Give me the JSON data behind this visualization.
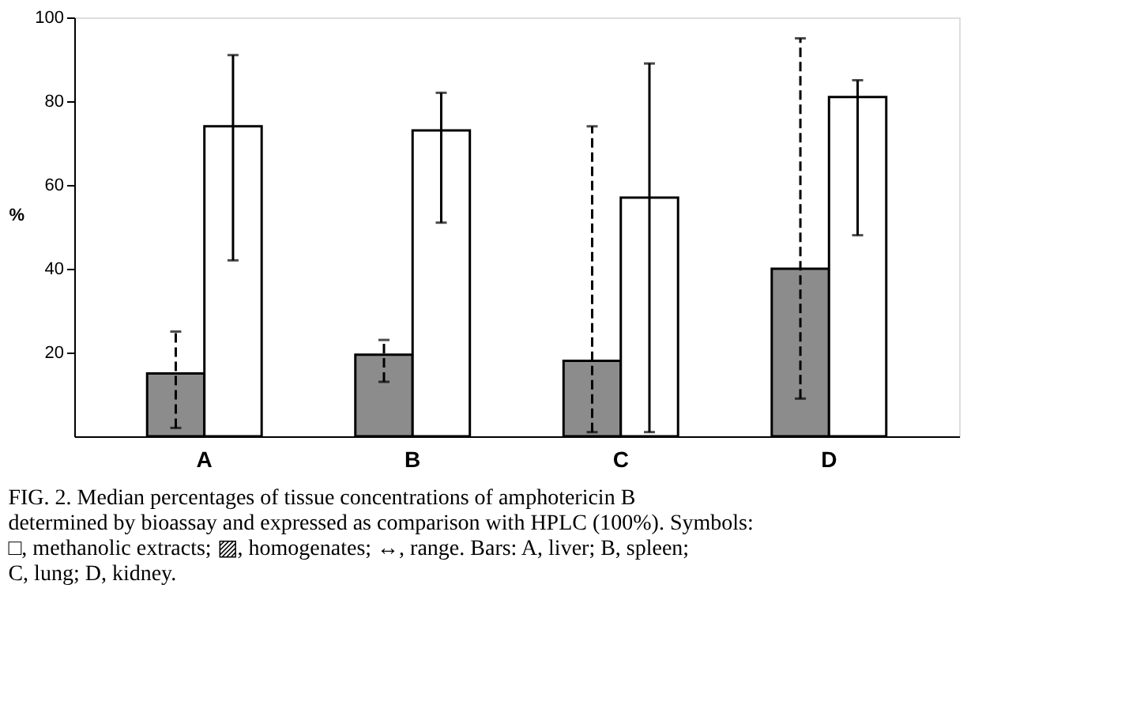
{
  "chart_data": {
    "type": "bar",
    "categories": [
      "A",
      "B",
      "C",
      "D"
    ],
    "ylabel": "%",
    "ylim": [
      0,
      100
    ],
    "yticks": [
      20,
      40,
      60,
      80,
      100
    ],
    "grid": false,
    "legend": false,
    "series": [
      {
        "color": "#8c8c8c",
        "line_style": "dashed",
        "values": [
          15,
          19.5,
          18,
          40
        ],
        "errors": [
          [
            2,
            25
          ],
          [
            13,
            23
          ],
          [
            1,
            74
          ],
          [
            9,
            95
          ]
        ]
      },
      {
        "color": "#ffffff",
        "line_style": "solid",
        "values": [
          74,
          73,
          57,
          81
        ],
        "errors": [
          [
            42,
            91
          ],
          [
            51,
            82
          ],
          [
            1,
            89
          ],
          [
            48,
            85
          ]
        ]
      }
    ],
    "annotations": [
      "FIG. 2. Median percentages of tissue concentrations of amphotericin B determined by bioassay and expressed as comparison with HPLC (100%). Symbols: □, methanolic extracts; ▨, homogenates; ↔, range. Bars: A, liver; B, spleen; C, lung; D, kidney."
    ]
  }
}
